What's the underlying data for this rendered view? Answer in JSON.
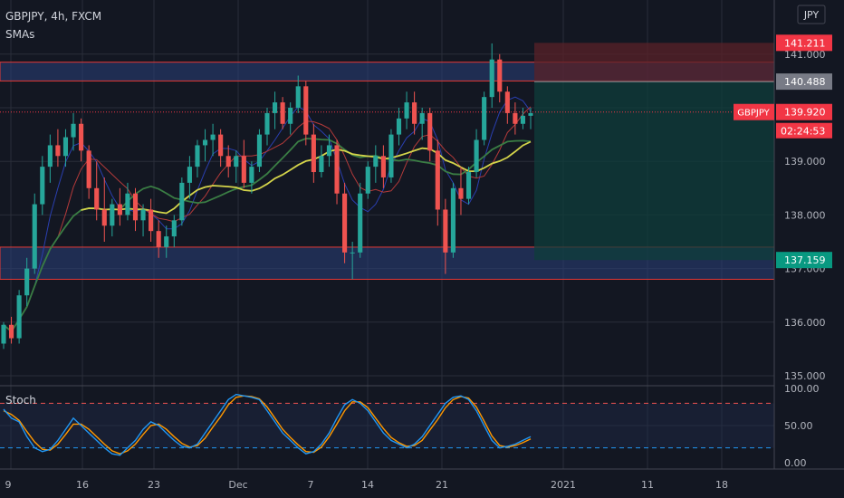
{
  "header": {
    "symbol_line": "GBPJPY, 4h, FXCM",
    "indicator": "SMAs",
    "currency": "JPY"
  },
  "colors": {
    "background": "#131722",
    "grid": "#2a2e39",
    "up": "#26a69a",
    "down": "#ef5350",
    "zone": "#2a3f7a",
    "zone_border": "#e53935",
    "target": "#0f3d3b",
    "stop": "#5a2128",
    "sma_yellow": "#d4d44a",
    "sma_green": "#3a7d44",
    "sma_red": "#b33a3a",
    "sma_blue": "#2a3fb0",
    "stoch_k": "#2196f3",
    "stoch_d": "#ff9800"
  },
  "chart_data": {
    "type": "candlestick",
    "price_axis": {
      "ticks": [
        {
          "value": 135,
          "label": "135.000"
        },
        {
          "value": 136,
          "label": "136.000"
        },
        {
          "value": 137,
          "label": "137.000"
        },
        {
          "value": 138,
          "label": "138.000"
        },
        {
          "value": 139,
          "label": "139.000"
        },
        {
          "value": 141,
          "label": "141.000"
        }
      ],
      "range": [
        134.9,
        141.5
      ]
    },
    "time_axis": {
      "labels": [
        "9",
        "16",
        "23",
        "Dec",
        "7",
        "14",
        "21",
        "2021",
        "11",
        "18"
      ]
    },
    "price_labels": [
      {
        "value": 141.211,
        "label": "141.211",
        "color": "#f23645"
      },
      {
        "value": 140.488,
        "label": "140.488",
        "color": "#787b86"
      },
      {
        "value": 139.92,
        "label": "139.920",
        "color": "#f23645",
        "symbol": "GBPJPY",
        "countdown": "02:24:53"
      },
      {
        "value": 137.159,
        "label": "137.159",
        "color": "#089981"
      }
    ],
    "zones": [
      {
        "from": 140.5,
        "to": 140.85
      },
      {
        "from": 136.8,
        "to": 137.4
      }
    ],
    "position": {
      "entry": 140.488,
      "stop": 141.211,
      "target": 137.159
    },
    "candles": [
      [
        135.6,
        136.0,
        135.5,
        135.95
      ],
      [
        135.95,
        136.1,
        135.6,
        135.7
      ],
      [
        135.7,
        136.6,
        135.6,
        136.5
      ],
      [
        136.5,
        137.2,
        136.3,
        137.0
      ],
      [
        137.0,
        138.4,
        136.9,
        138.2
      ],
      [
        138.2,
        139.1,
        138.0,
        138.9
      ],
      [
        138.9,
        139.5,
        138.6,
        139.3
      ],
      [
        139.3,
        139.6,
        138.9,
        139.1
      ],
      [
        139.1,
        139.6,
        138.9,
        139.45
      ],
      [
        139.45,
        139.9,
        139.2,
        139.7
      ],
      [
        139.7,
        139.8,
        139.0,
        139.2
      ],
      [
        139.2,
        139.3,
        138.3,
        138.5
      ],
      [
        138.5,
        139.0,
        137.9,
        138.1
      ],
      [
        138.1,
        138.7,
        137.5,
        137.8
      ],
      [
        137.8,
        138.3,
        137.6,
        138.2
      ],
      [
        138.2,
        138.5,
        137.8,
        138.0
      ],
      [
        138.0,
        138.6,
        137.9,
        138.4
      ],
      [
        138.4,
        138.5,
        137.7,
        137.9
      ],
      [
        137.9,
        138.2,
        137.6,
        138.1
      ],
      [
        138.1,
        138.3,
        137.5,
        137.7
      ],
      [
        137.7,
        137.9,
        137.2,
        137.4
      ],
      [
        137.4,
        137.8,
        137.2,
        137.6
      ],
      [
        137.6,
        138.0,
        137.4,
        137.9
      ],
      [
        137.9,
        138.7,
        137.8,
        138.6
      ],
      [
        138.6,
        139.1,
        138.3,
        138.9
      ],
      [
        138.9,
        139.4,
        138.7,
        139.3
      ],
      [
        139.3,
        139.6,
        139.0,
        139.4
      ],
      [
        139.4,
        139.7,
        139.1,
        139.5
      ],
      [
        139.5,
        139.6,
        138.9,
        139.1
      ],
      [
        139.1,
        139.3,
        138.7,
        138.9
      ],
      [
        138.9,
        139.2,
        138.6,
        139.1
      ],
      [
        139.1,
        139.4,
        138.5,
        138.6
      ],
      [
        138.6,
        139.0,
        138.4,
        138.9
      ],
      [
        138.9,
        139.6,
        138.8,
        139.5
      ],
      [
        139.5,
        140.0,
        139.3,
        139.9
      ],
      [
        139.9,
        140.3,
        139.6,
        140.1
      ],
      [
        140.1,
        140.2,
        139.6,
        139.7
      ],
      [
        139.7,
        140.1,
        139.5,
        140.0
      ],
      [
        140.0,
        140.6,
        139.9,
        140.4
      ],
      [
        140.4,
        140.5,
        139.3,
        139.5
      ],
      [
        139.5,
        139.7,
        138.6,
        138.8
      ],
      [
        138.8,
        139.3,
        138.7,
        139.1
      ],
      [
        139.1,
        139.5,
        138.9,
        139.3
      ],
      [
        139.3,
        139.4,
        138.2,
        138.4
      ],
      [
        138.4,
        138.6,
        137.1,
        137.3
      ],
      [
        137.3,
        137.5,
        136.8,
        137.3
      ],
      [
        137.3,
        138.6,
        137.2,
        138.4
      ],
      [
        138.4,
        139.0,
        138.3,
        138.9
      ],
      [
        138.9,
        139.3,
        138.6,
        139.1
      ],
      [
        139.1,
        139.3,
        138.5,
        138.7
      ],
      [
        138.7,
        139.6,
        138.6,
        139.5
      ],
      [
        139.5,
        140.0,
        139.3,
        139.8
      ],
      [
        139.8,
        140.3,
        139.6,
        140.1
      ],
      [
        140.1,
        140.3,
        139.5,
        139.7
      ],
      [
        139.7,
        140.0,
        139.4,
        139.9
      ],
      [
        139.9,
        140.0,
        139.0,
        139.2
      ],
      [
        139.2,
        139.4,
        137.8,
        138.1
      ],
      [
        138.1,
        138.3,
        136.9,
        137.3
      ],
      [
        137.3,
        138.6,
        137.2,
        138.5
      ],
      [
        138.5,
        138.9,
        138.0,
        138.3
      ],
      [
        138.3,
        138.9,
        138.2,
        138.8
      ],
      [
        138.8,
        139.6,
        138.7,
        139.4
      ],
      [
        139.4,
        140.3,
        139.3,
        140.2
      ],
      [
        140.2,
        141.2,
        140.0,
        140.9
      ],
      [
        140.9,
        141.0,
        140.1,
        140.3
      ],
      [
        140.3,
        140.4,
        139.7,
        139.9
      ],
      [
        139.9,
        140.1,
        139.5,
        139.7
      ],
      [
        139.7,
        140.0,
        139.6,
        139.85
      ],
      [
        139.85,
        140.0,
        139.6,
        139.9
      ]
    ],
    "stochastic": {
      "title": "Stoch",
      "ticks": [
        {
          "value": 100,
          "label": "100.00"
        },
        {
          "value": 50,
          "label": "50.00"
        },
        {
          "value": 0,
          "label": "0.00"
        }
      ],
      "levels": [
        80,
        20
      ],
      "k": [
        72,
        60,
        55,
        35,
        20,
        15,
        18,
        30,
        45,
        60,
        50,
        40,
        30,
        20,
        12,
        10,
        20,
        30,
        45,
        55,
        50,
        40,
        30,
        22,
        20,
        25,
        40,
        55,
        70,
        85,
        92,
        90,
        88,
        85,
        70,
        55,
        40,
        30,
        20,
        12,
        15,
        25,
        40,
        60,
        78,
        85,
        80,
        70,
        55,
        40,
        30,
        25,
        20,
        25,
        35,
        50,
        65,
        80,
        88,
        90,
        85,
        70,
        50,
        30,
        20,
        22,
        25,
        30,
        35
      ],
      "d": [
        70,
        65,
        57,
        42,
        28,
        18,
        17,
        25,
        38,
        52,
        52,
        45,
        35,
        25,
        16,
        12,
        16,
        25,
        38,
        50,
        52,
        45,
        35,
        26,
        21,
        23,
        33,
        48,
        62,
        78,
        88,
        90,
        89,
        86,
        75,
        60,
        45,
        34,
        24,
        15,
        14,
        21,
        35,
        52,
        70,
        82,
        82,
        74,
        60,
        46,
        34,
        27,
        22,
        23,
        30,
        44,
        58,
        74,
        85,
        89,
        87,
        75,
        56,
        36,
        23,
        21,
        23,
        27,
        32
      ]
    }
  }
}
